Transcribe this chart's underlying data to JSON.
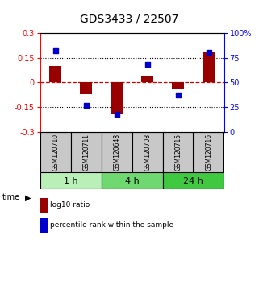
{
  "title": "GDS3433 / 22507",
  "samples": [
    "GSM120710",
    "GSM120711",
    "GSM120648",
    "GSM120708",
    "GSM120715",
    "GSM120716"
  ],
  "log10_ratio": [
    0.1,
    -0.07,
    -0.19,
    0.04,
    -0.04,
    0.185
  ],
  "percentile_rank": [
    82,
    27,
    18,
    68,
    37,
    80
  ],
  "time_groups": [
    {
      "label": "1 h",
      "cols": [
        0,
        1
      ],
      "color": "#b8f0b8"
    },
    {
      "label": "4 h",
      "cols": [
        2,
        3
      ],
      "color": "#70d870"
    },
    {
      "label": "24 h",
      "cols": [
        4,
        5
      ],
      "color": "#40c840"
    }
  ],
  "ylim_left": [
    -0.3,
    0.3
  ],
  "yticks_left": [
    -0.3,
    -0.15,
    0,
    0.15,
    0.3
  ],
  "right_tick_labels": [
    "0",
    "25",
    "50",
    "75",
    "100%"
  ],
  "bar_color": "#990000",
  "dot_color": "#0000cc",
  "hline_color": "#cc0000",
  "dot_color_legend": "#0000cc",
  "sample_box_color": "#c8c8c8",
  "bg_color": "#ffffff",
  "title_fontsize": 10,
  "tick_fontsize": 7,
  "bar_width": 0.4
}
